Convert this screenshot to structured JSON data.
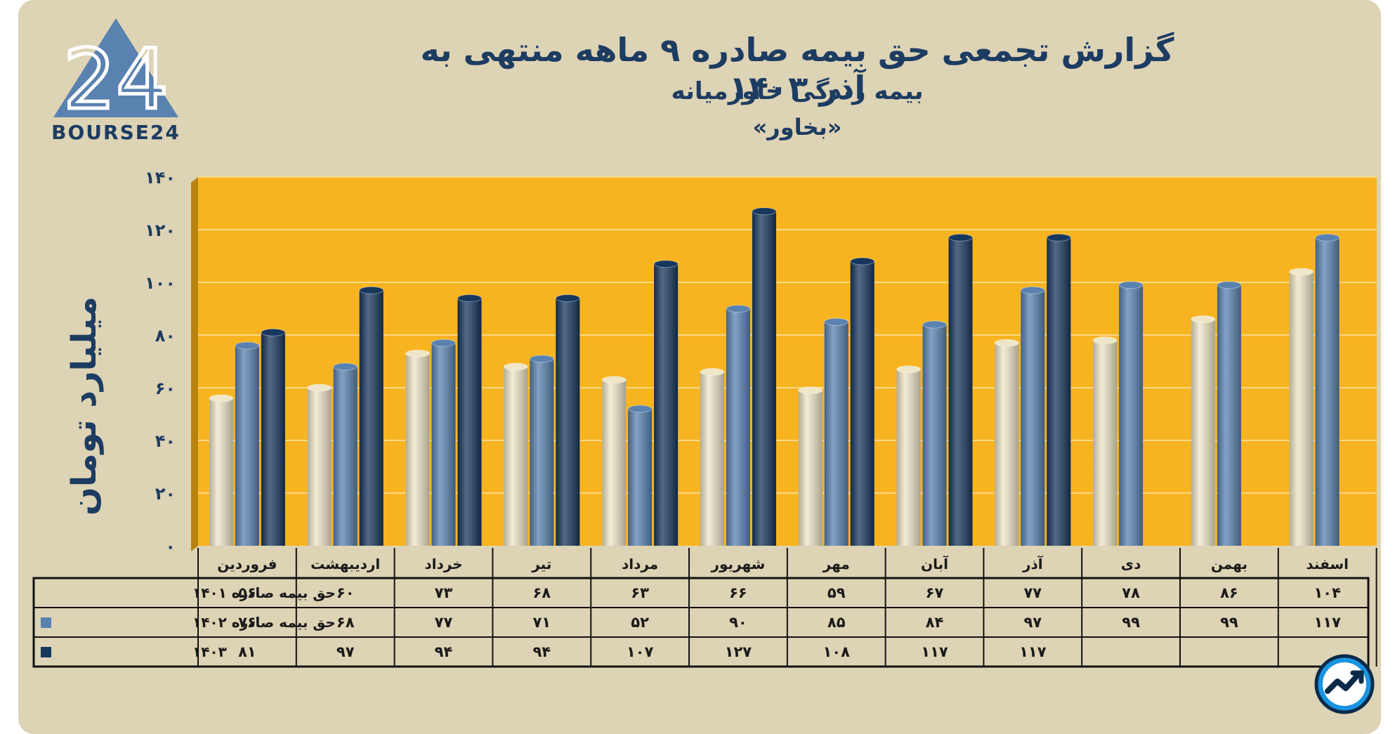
{
  "page": {
    "title": "گزارش تجمعی حق بیمه صادره ۹ ماهه منتهی به آذر ۱۴۰۳",
    "subtitle": "بیمه زندگی خاورمیانه",
    "subsubtitle": "«بخاور»",
    "logo_text": "BOURSE24",
    "logo_mark": "24"
  },
  "chart_data": {
    "type": "bar",
    "ylabel": "میلیارد تومان",
    "ylim": [
      0,
      140
    ],
    "yticks": [
      0,
      20,
      40,
      60,
      80,
      100,
      120,
      140
    ],
    "ytick_labels": [
      "۰",
      "۲۰",
      "۴۰",
      "۶۰",
      "۸۰",
      "۱۰۰",
      "۱۲۰",
      "۱۴۰"
    ],
    "grid": true,
    "categories": [
      "فروردین",
      "اردیبهشت",
      "خرداد",
      "تیر",
      "مرداد",
      "شهریور",
      "مهر",
      "آبان",
      "آذر",
      "دی",
      "بهمن",
      "اسفند"
    ],
    "series": [
      {
        "name": "حق بیمه صادره ۱۴۰۱",
        "color": "#efe6c8",
        "values": [
          56,
          60,
          73,
          68,
          63,
          66,
          59,
          67,
          77,
          78,
          86,
          104
        ],
        "labels": [
          "۵۶",
          "۶۰",
          "۷۳",
          "۶۸",
          "۶۳",
          "۶۶",
          "۵۹",
          "۶۷",
          "۷۷",
          "۷۸",
          "۸۶",
          "۱۰۴"
        ]
      },
      {
        "name": "حق بیمه صادره ۱۴۰۲",
        "color": "#5a82b0",
        "values": [
          76,
          68,
          77,
          71,
          52,
          90,
          85,
          84,
          97,
          99,
          99,
          117
        ],
        "labels": [
          "۷۶",
          "۶۸",
          "۷۷",
          "۷۱",
          "۵۲",
          "۹۰",
          "۸۵",
          "۸۴",
          "۹۷",
          "۹۹",
          "۹۹",
          "۱۱۷"
        ]
      },
      {
        "name": "۱۴۰۳",
        "color": "#17375e",
        "values": [
          81,
          97,
          94,
          94,
          107,
          127,
          108,
          117,
          117,
          null,
          null,
          null
        ],
        "labels": [
          "۸۱",
          "۹۷",
          "۹۴",
          "۹۴",
          "۱۰۷",
          "۱۲۷",
          "۱۰۸",
          "۱۱۷",
          "۱۱۷",
          "",
          "",
          ""
        ]
      }
    ],
    "plot_background": "#f8b420"
  }
}
